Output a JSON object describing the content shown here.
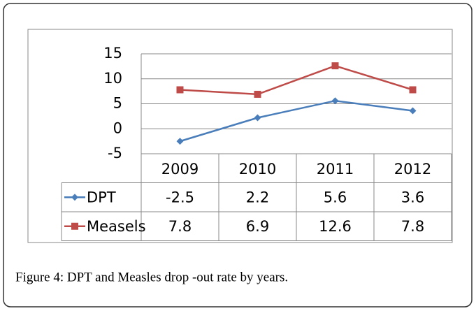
{
  "chart_data": {
    "type": "line",
    "categories": [
      "2009",
      "2010",
      "2011",
      "2012"
    ],
    "series": [
      {
        "name": "DPT",
        "color": "#4a7ebb",
        "values": [
          -2.5,
          2.2,
          5.6,
          3.6
        ]
      },
      {
        "name": "Measels",
        "color": "#be4b48",
        "values": [
          7.8,
          6.9,
          12.6,
          7.8
        ]
      }
    ],
    "ylim": [
      -5,
      15
    ],
    "yticks": [
      -5,
      0,
      5,
      10,
      15
    ],
    "grid": true
  },
  "caption": "Figure 4: DPT and Measles drop -out rate by years."
}
